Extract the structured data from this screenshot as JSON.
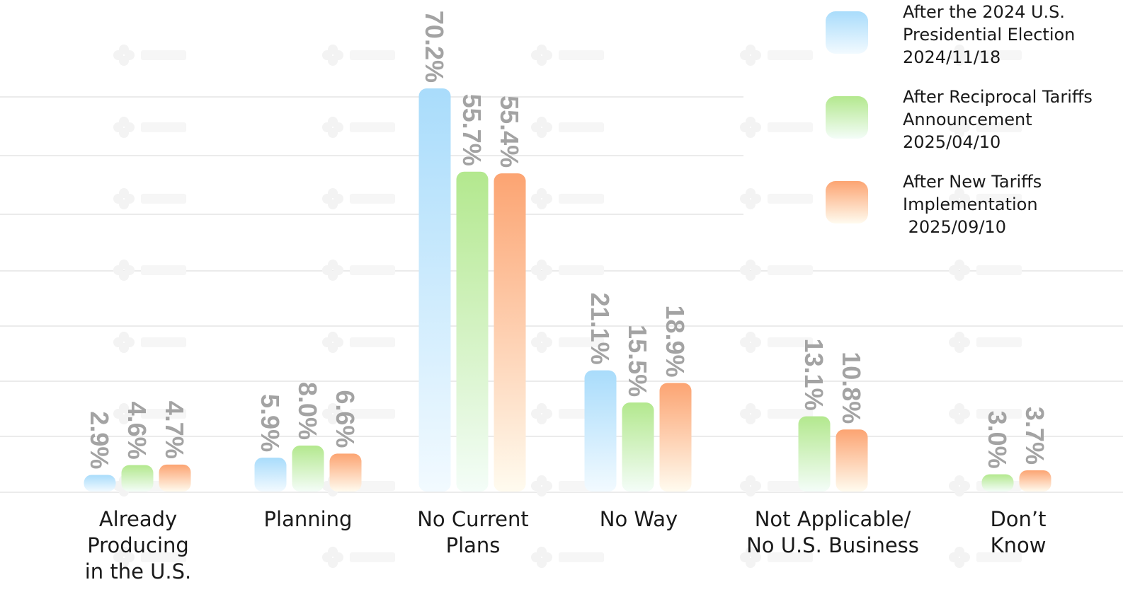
{
  "chart_data": {
    "type": "bar",
    "title": "",
    "xlabel": "",
    "ylabel": "",
    "ylim": [
      0,
      85
    ],
    "grid": true,
    "legend_placement": "top-right",
    "watermark": "TAITRA",
    "categories": [
      [
        "Already",
        "Producing",
        "in the U.S."
      ],
      [
        "Planning"
      ],
      [
        "No Current",
        "Plans"
      ],
      [
        "No Way"
      ],
      [
        "Not Applicable/",
        "No U.S. Business"
      ],
      [
        "Don’t",
        "Know"
      ]
    ],
    "series": [
      {
        "name": [
          "After the 2024 U.S.",
          "Presidential Election",
          "2024/11/18"
        ],
        "color_top": "#a9dcfb",
        "color_bottom": "#f2faff",
        "values": [
          2.9,
          5.9,
          70.2,
          21.1,
          null,
          null
        ],
        "labels": [
          "2.9%",
          "5.9%",
          "70.2%",
          "21.1%",
          null,
          null
        ]
      },
      {
        "name": [
          "After Reciprocal Tariffs",
          "Announcement",
          "2025/04/10"
        ],
        "color_top": "#b3e88e",
        "color_bottom": "#f4fdf8",
        "values": [
          4.6,
          8.0,
          55.7,
          15.5,
          13.1,
          3.0
        ],
        "labels": [
          "4.6%",
          "8.0%",
          "55.7%",
          "15.5%",
          "13.1%",
          "3.0%"
        ]
      },
      {
        "name": [
          "After New Tariffs",
          "Implementation",
          " 2025/09/10"
        ],
        "color_top": "#fca472",
        "color_bottom": "#fffbef",
        "values": [
          4.7,
          6.6,
          55.4,
          18.9,
          10.8,
          3.7
        ],
        "labels": [
          "4.7%",
          "6.6%",
          "55.4%",
          "18.9%",
          "10.8%",
          "3.7%"
        ]
      }
    ]
  }
}
